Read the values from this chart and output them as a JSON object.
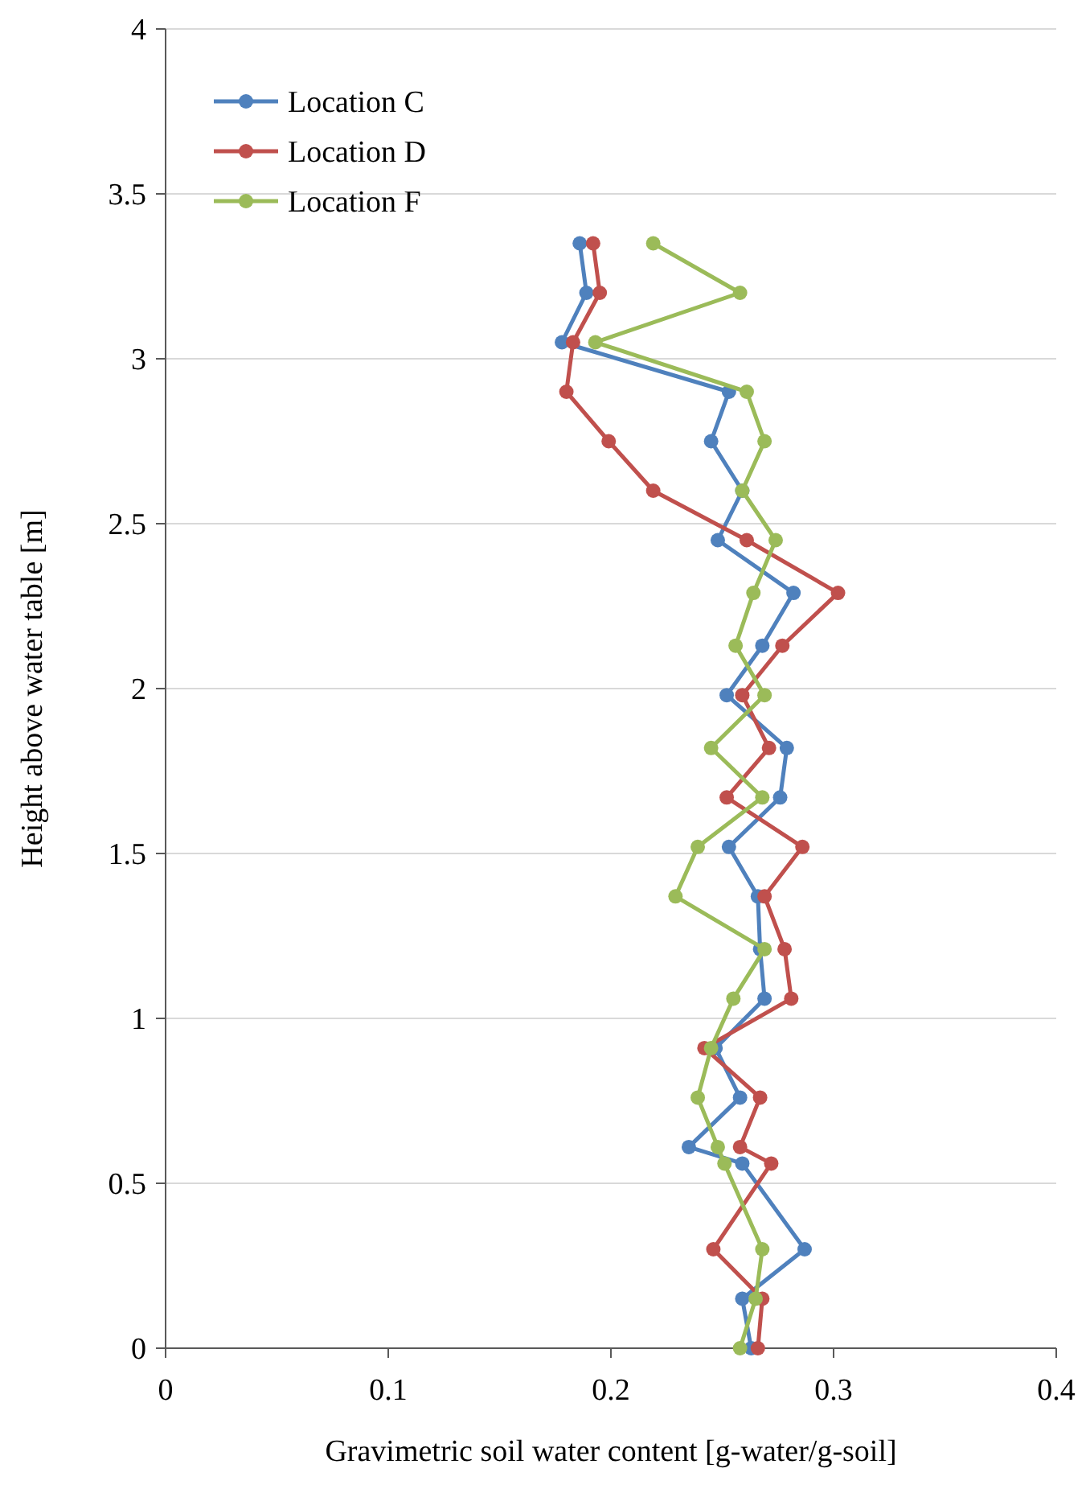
{
  "chart_data": {
    "type": "line",
    "xlabel": "Gravimetric  soil water content [g-water/g-soil]",
    "ylabel": "Height  above water table [m]",
    "xlim": [
      0,
      0.4
    ],
    "xticks": [
      0,
      0.1,
      0.2,
      0.3,
      0.4
    ],
    "ylim": [
      0,
      4
    ],
    "yticks": [
      0,
      0.5,
      1,
      1.5,
      2,
      2.5,
      3,
      3.5,
      4
    ],
    "grid": "y",
    "legend": "top left",
    "marker": "circle",
    "line_style": "solid",
    "series": [
      {
        "name": "Location C",
        "color": "#4f81bd",
        "x": [
          0.186,
          0.189,
          0.178,
          0.253,
          0.245,
          0.259,
          0.248,
          0.282,
          0.268,
          0.252,
          0.279,
          0.276,
          0.253,
          0.266,
          0.267,
          0.269,
          0.247,
          0.258,
          0.235,
          0.259,
          0.287,
          0.259,
          0.263
        ],
        "values": [
          3.35,
          3.2,
          3.05,
          2.9,
          2.75,
          2.6,
          2.45,
          2.29,
          2.13,
          1.98,
          1.82,
          1.67,
          1.52,
          1.37,
          1.21,
          1.06,
          0.91,
          0.76,
          0.61,
          0.56,
          0.3,
          0.15,
          0
        ]
      },
      {
        "name": "Location D",
        "color": "#c0504d",
        "x": [
          0.192,
          0.195,
          0.183,
          0.18,
          0.199,
          0.219,
          0.261,
          0.302,
          0.277,
          0.259,
          0.271,
          0.252,
          0.286,
          0.269,
          0.278,
          0.281,
          0.242,
          0.267,
          0.258,
          0.272,
          0.246,
          0.268,
          0.266
        ],
        "values": [
          3.35,
          3.2,
          3.05,
          2.9,
          2.75,
          2.6,
          2.45,
          2.29,
          2.13,
          1.98,
          1.82,
          1.67,
          1.52,
          1.37,
          1.21,
          1.06,
          0.91,
          0.76,
          0.61,
          0.56,
          0.3,
          0.15,
          0
        ]
      },
      {
        "name": "Location F",
        "color": "#9bbb59",
        "x": [
          0.219,
          0.258,
          0.193,
          0.261,
          0.269,
          0.259,
          0.274,
          0.264,
          0.256,
          0.269,
          0.245,
          0.268,
          0.239,
          0.229,
          0.269,
          0.255,
          0.245,
          0.239,
          0.248,
          0.251,
          0.268,
          0.265,
          0.258
        ],
        "values": [
          3.35,
          3.2,
          3.05,
          2.9,
          2.75,
          2.6,
          2.45,
          2.29,
          2.13,
          1.98,
          1.82,
          1.67,
          1.52,
          1.37,
          1.21,
          1.06,
          0.91,
          0.76,
          0.61,
          0.56,
          0.3,
          0.15,
          0
        ]
      }
    ]
  }
}
